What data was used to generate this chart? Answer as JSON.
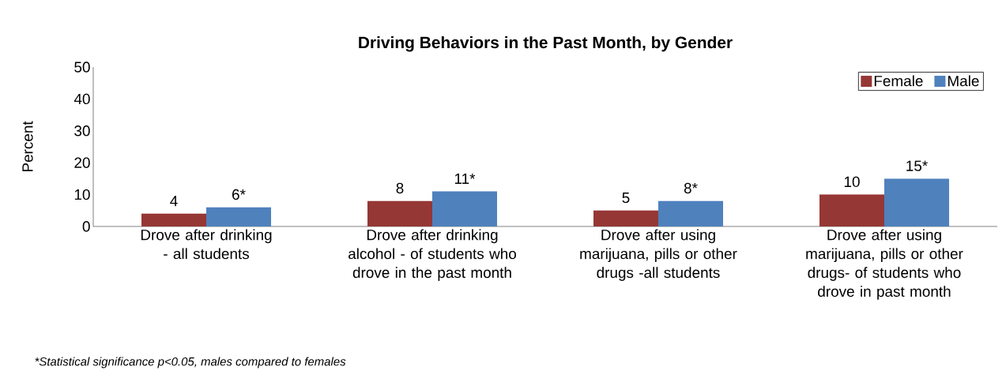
{
  "chart_data": {
    "type": "bar",
    "title": "Driving Behaviors in the Past Month, by Gender",
    "ylabel": "Percent",
    "categories": [
      "Drove after drinking - all students",
      "Drove after drinking alcohol - of students who drove in the past month",
      "Drove after using marijuana, pills or other drugs -all students",
      "Drove after using marijuana, pills or other drugs- of students who drove in past month"
    ],
    "series": [
      {
        "name": "Female",
        "color": "#953735",
        "values": [
          4,
          8,
          5,
          10
        ],
        "value_labels": [
          "4",
          "8",
          "5",
          "10"
        ]
      },
      {
        "name": "Male",
        "color": "#4f81bd",
        "values": [
          6,
          11,
          8,
          15
        ],
        "value_labels": [
          "6*",
          "11*",
          "8*",
          "15*"
        ]
      }
    ],
    "ylim": [
      0,
      50
    ],
    "yticks": [
      0,
      10,
      20,
      30,
      40,
      50
    ],
    "grid": false,
    "legend": "top right",
    "annotations": [
      "*Statistical significance p<0.05, males compared to females"
    ]
  }
}
